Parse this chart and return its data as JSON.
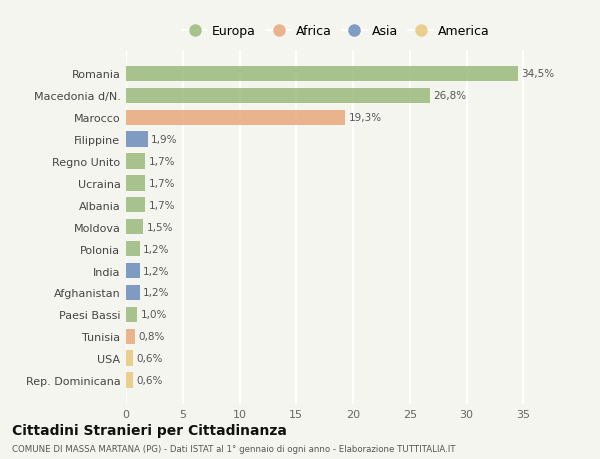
{
  "categories": [
    "Romania",
    "Macedonia d/N.",
    "Marocco",
    "Filippine",
    "Regno Unito",
    "Ucraina",
    "Albania",
    "Moldova",
    "Polonia",
    "India",
    "Afghanistan",
    "Paesi Bassi",
    "Tunisia",
    "USA",
    "Rep. Dominicana"
  ],
  "values": [
    34.5,
    26.8,
    19.3,
    1.9,
    1.7,
    1.7,
    1.7,
    1.5,
    1.2,
    1.2,
    1.2,
    1.0,
    0.8,
    0.6,
    0.6
  ],
  "labels": [
    "34,5%",
    "26,8%",
    "19,3%",
    "1,9%",
    "1,7%",
    "1,7%",
    "1,7%",
    "1,5%",
    "1,2%",
    "1,2%",
    "1,2%",
    "1,0%",
    "0,8%",
    "0,6%",
    "0,6%"
  ],
  "continents": [
    "Europa",
    "Europa",
    "Africa",
    "Asia",
    "Europa",
    "Europa",
    "Europa",
    "Europa",
    "Europa",
    "Asia",
    "Asia",
    "Europa",
    "Africa",
    "America",
    "America"
  ],
  "colors": {
    "Europa": "#9aba7c",
    "Africa": "#e8a87c",
    "Asia": "#6b8cba",
    "America": "#e8c87c"
  },
  "title": "Cittadini Stranieri per Cittadinanza",
  "subtitle": "COMUNE DI MASSA MARTANA (PG) - Dati ISTAT al 1° gennaio di ogni anno - Elaborazione TUTTITALIA.IT",
  "xlim": [
    0,
    37
  ],
  "xticks": [
    0,
    5,
    10,
    15,
    20,
    25,
    30,
    35
  ],
  "background_color": "#f5f5f0",
  "grid_color": "#ffffff",
  "bar_height": 0.7
}
